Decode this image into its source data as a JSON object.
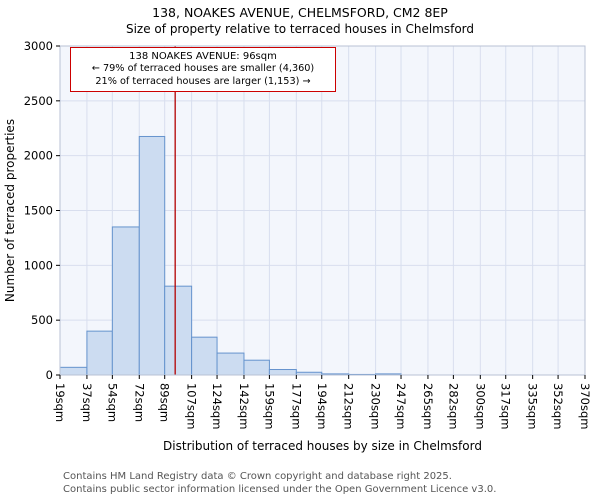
{
  "title": {
    "line1": "138, NOAKES AVENUE, CHELMSFORD, CM2 8EP",
    "line2": "Size of property relative to terraced houses in Chelmsford"
  },
  "annotation": {
    "line1": "138 NOAKES AVENUE: 96sqm",
    "line2": "← 79% of terraced houses are smaller (4,360)",
    "line3": "21% of terraced houses are larger (1,153) →"
  },
  "footer": {
    "line1": "Contains HM Land Registry data © Crown copyright and database right 2025.",
    "line2": "Contains public sector information licensed under the Open Government Licence v3.0."
  },
  "chart_data": {
    "type": "bar",
    "title": "138, NOAKES AVENUE, CHELMSFORD, CM2 8EP — Size of property relative to terraced houses in Chelmsford",
    "xlabel": "Distribution of terraced houses by size in Chelmsford",
    "ylabel": "Number of terraced properties",
    "x_tick_labels": [
      "19sqm",
      "37sqm",
      "54sqm",
      "72sqm",
      "89sqm",
      "107sqm",
      "124sqm",
      "142sqm",
      "159sqm",
      "177sqm",
      "194sqm",
      "212sqm",
      "230sqm",
      "247sqm",
      "265sqm",
      "282sqm",
      "300sqm",
      "317sqm",
      "335sqm",
      "352sqm",
      "370sqm"
    ],
    "bin_edges": [
      19,
      37,
      54,
      72,
      89,
      107,
      124,
      142,
      159,
      177,
      194,
      212,
      230,
      247,
      265,
      282,
      300,
      317,
      335,
      352,
      370
    ],
    "values": [
      70,
      400,
      1350,
      2175,
      810,
      345,
      200,
      135,
      50,
      25,
      10,
      5,
      10,
      0,
      0,
      0,
      0,
      0,
      0,
      0
    ],
    "ylim": [
      0,
      3000
    ],
    "ytick_step": 500,
    "grid": true,
    "legend": "none",
    "marker": {
      "value": 96,
      "label": "96sqm"
    },
    "colors": {
      "bar_fill": "#ccdcf1",
      "bar_stroke": "#6593cd",
      "grid": "#d8deee",
      "plot_bg": "#f3f6fc",
      "frame": "#b8c2d4",
      "tick": "#000000",
      "marker_line": "#b30000",
      "annotation_border": "#cc0000"
    }
  }
}
